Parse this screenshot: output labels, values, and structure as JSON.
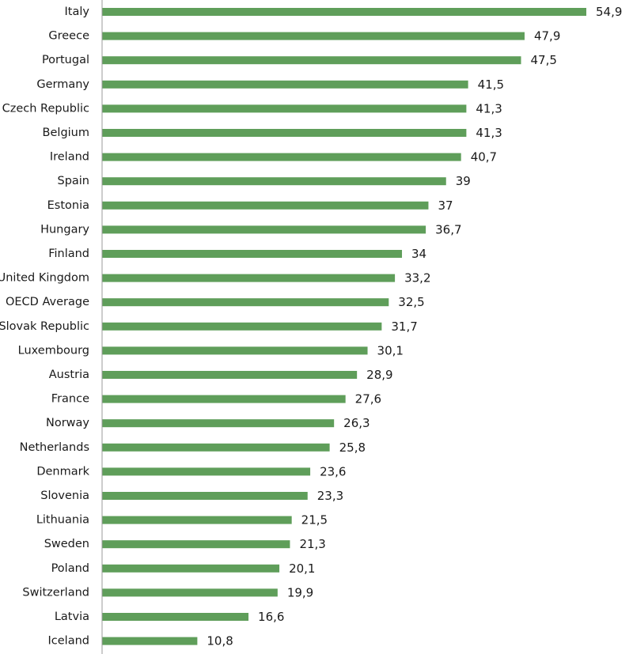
{
  "chart_data": {
    "type": "bar",
    "orientation": "horizontal",
    "title": "",
    "xlabel": "",
    "ylabel": "",
    "xlim": [
      0,
      54.9
    ],
    "grid": false,
    "legend": "none",
    "bar_color": "#5f9e5a",
    "axis_color": "#9a9a9a",
    "categories": [
      "Italy",
      "Greece",
      "Portugal",
      "Germany",
      "Czech Republic",
      "Belgium",
      "Ireland",
      "Spain",
      "Estonia",
      "Hungary",
      "Finland",
      "United Kingdom",
      "OECD Average",
      "Slovak Republic",
      "Luxembourg",
      "Austria",
      "France",
      "Norway",
      "Netherlands",
      "Denmark",
      "Slovenia",
      "Lithuania",
      "Sweden",
      "Poland",
      "Switzerland",
      "Latvia",
      "Iceland"
    ],
    "values": [
      54.9,
      47.9,
      47.5,
      41.5,
      41.3,
      41.3,
      40.7,
      39,
      37,
      36.7,
      34,
      33.2,
      32.5,
      31.7,
      30.1,
      28.9,
      27.6,
      26.3,
      25.8,
      23.6,
      23.3,
      21.5,
      21.3,
      20.1,
      19.9,
      16.6,
      10.8
    ],
    "value_labels": [
      "54,9",
      "47,9",
      "47,5",
      "41,5",
      "41,3",
      "41,3",
      "40,7",
      "39",
      "37",
      "36,7",
      "34",
      "33,2",
      "32,5",
      "31,7",
      "30,1",
      "28,9",
      "27,6",
      "26,3",
      "25,8",
      "23,6",
      "23,3",
      "21,5",
      "21,3",
      "20,1",
      "19,9",
      "16,6",
      "10,8"
    ]
  }
}
